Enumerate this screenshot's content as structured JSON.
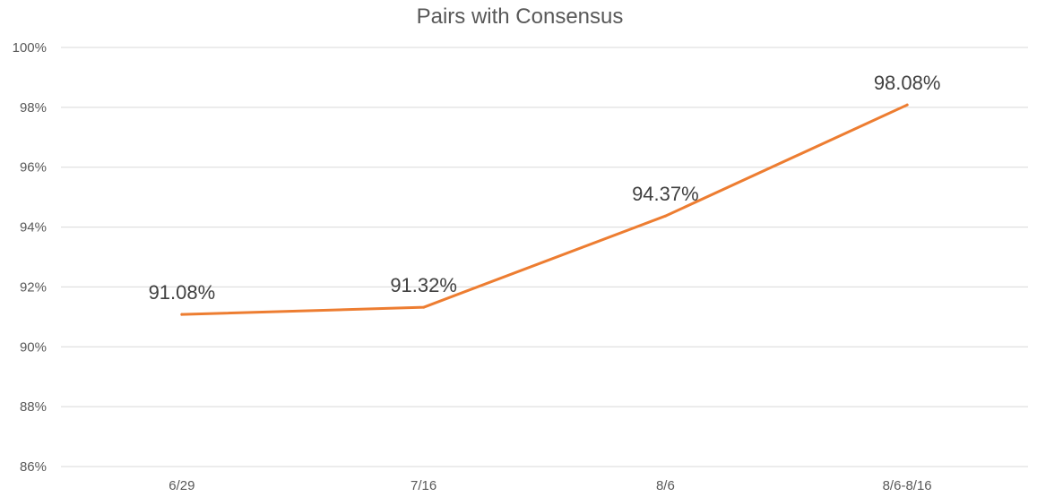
{
  "chart_data": {
    "type": "line",
    "title": "Pairs with Consensus",
    "xlabel": "",
    "ylabel": "",
    "categories": [
      "6/29",
      "7/16",
      "8/6",
      "8/6-8/16"
    ],
    "series": [
      {
        "values": [
          91.08,
          91.32,
          94.37,
          98.08
        ],
        "data_labels": [
          "91.08%",
          "91.32%",
          "94.37%",
          "98.08%"
        ],
        "color": "#ed7d31"
      }
    ],
    "ylim": [
      86,
      100
    ],
    "y_ticks": [
      86,
      88,
      90,
      92,
      94,
      96,
      98,
      100
    ],
    "y_tick_labels": [
      "86%",
      "88%",
      "90%",
      "92%",
      "94%",
      "96%",
      "98%",
      "100%"
    ],
    "grid": "horizontal",
    "legend": "none"
  }
}
